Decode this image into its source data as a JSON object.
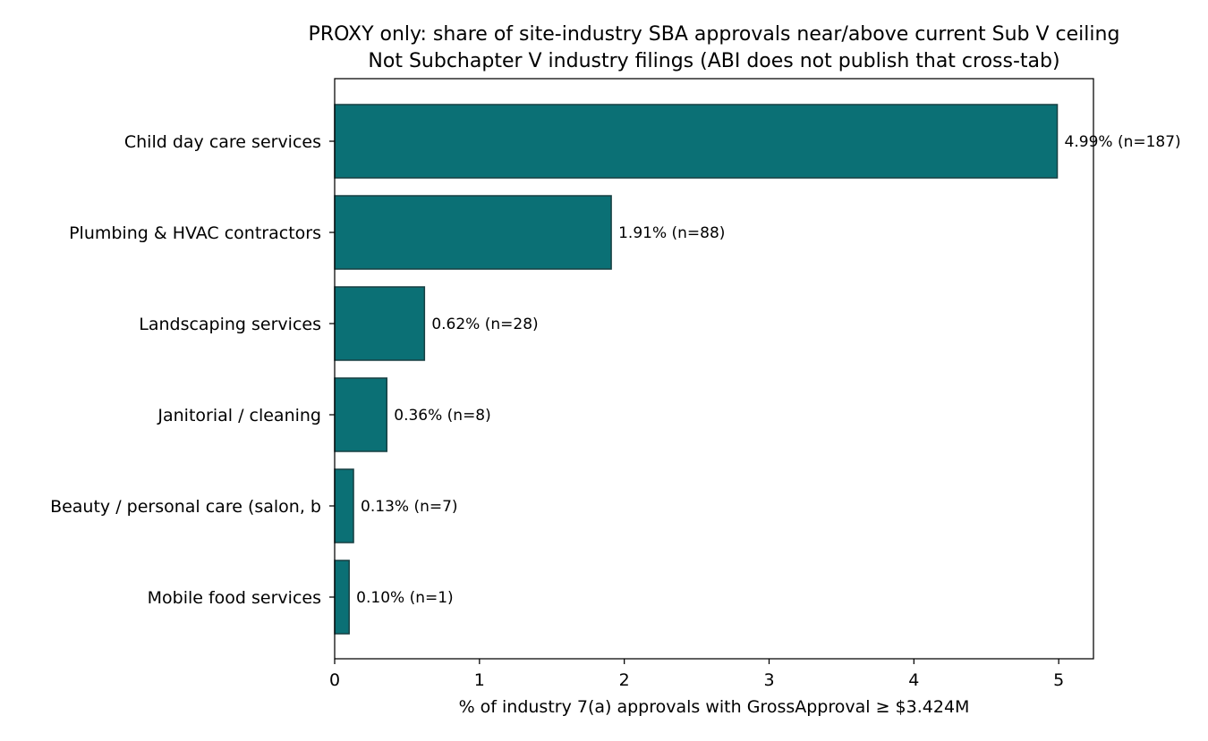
{
  "chart_data": {
    "type": "bar",
    "orientation": "horizontal",
    "title": "PROXY only: share of site-industry SBA approvals near/above current Sub V ceiling",
    "subtitle": "Not Subchapter V industry filings (ABI does not publish that cross-tab)",
    "xlabel": "% of industry 7(a) approvals with GrossApproval ≥ $3.424M",
    "ylabel": "",
    "xlim": [
      0,
      5.24
    ],
    "xticks": [
      0,
      1,
      2,
      3,
      4,
      5
    ],
    "categories": [
      "Child day care services",
      "Plumbing & HVAC contractors",
      "Landscaping services",
      "Janitorial / cleaning",
      "Beauty / personal care (salon, b",
      "Mobile food services"
    ],
    "values": [
      4.99,
      1.91,
      0.62,
      0.36,
      0.13,
      0.1
    ],
    "data_labels": [
      "4.99% (n=187)",
      "1.91% (n=88)",
      "0.62% (n=28)",
      "0.36% (n=8)",
      "0.13% (n=7)",
      "0.10% (n=1)"
    ],
    "grid": false,
    "legend": "none",
    "colors": {
      "bar_fill": "#0b7075",
      "bar_edge": "#173f42",
      "axis": "#000000"
    }
  }
}
